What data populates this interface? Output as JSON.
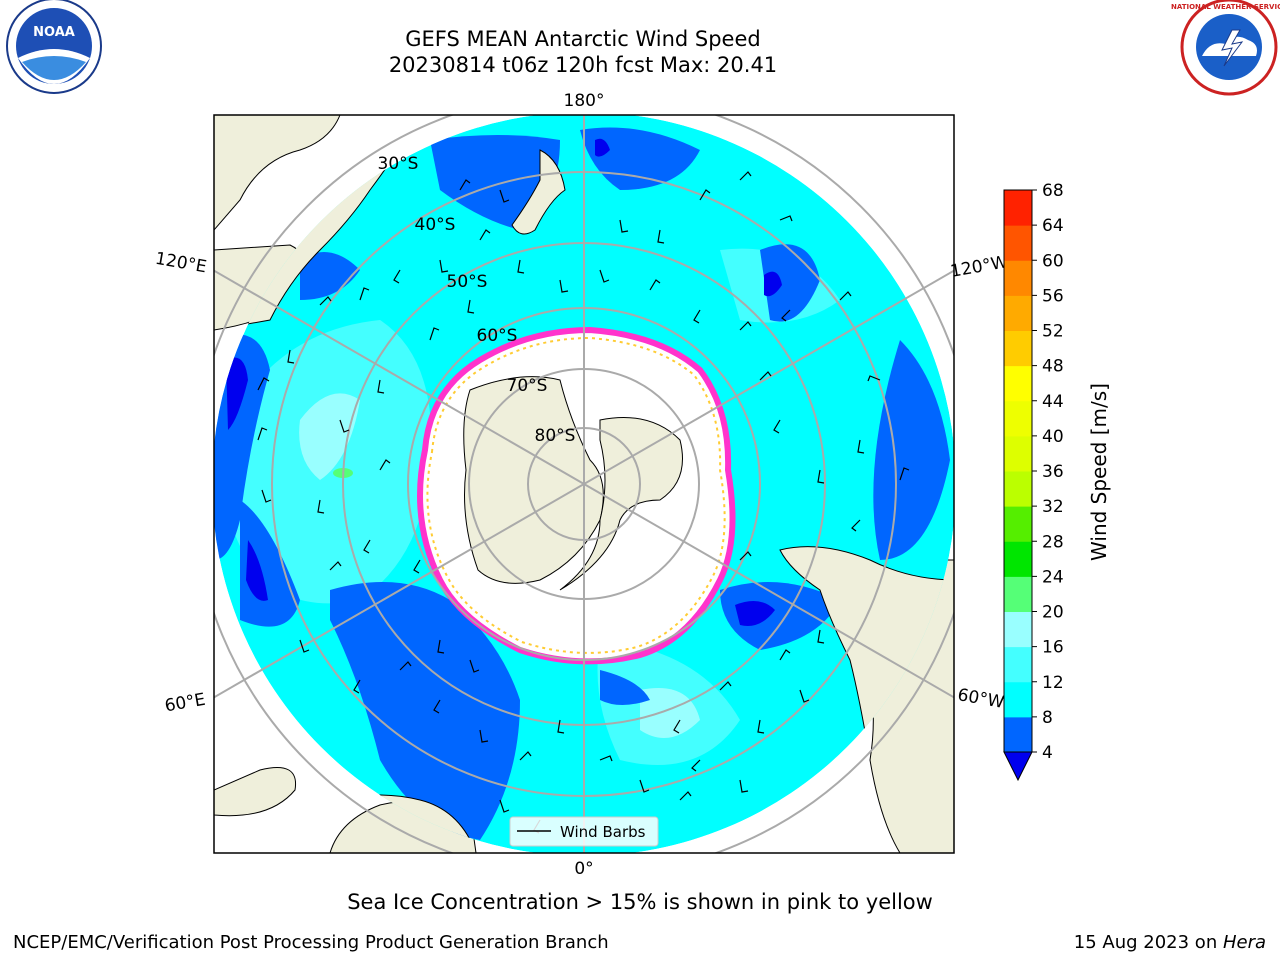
{
  "header": {
    "title": "GEFS MEAN Antarctic Wind Speed",
    "subtitle": "20230814 t06z 120h fcst   Max: 20.41"
  },
  "logos": {
    "left": "noaa-logo",
    "right": "national-weather-service-logo",
    "left_text": "NOAA",
    "right_text": "NATIONAL WEATHER SERVICE"
  },
  "map": {
    "longitude_labels": [
      "180°",
      "120°E",
      "120°W",
      "60°E",
      "60°W",
      "0°"
    ],
    "latitude_labels": [
      "30°S",
      "40°S",
      "50°S",
      "60°S",
      "70°S",
      "80°S"
    ],
    "legend_label": "Wind Barbs"
  },
  "colorbar": {
    "label": "Wind Speed [m/s]",
    "ticks": [
      "4",
      "8",
      "12",
      "16",
      "20",
      "24",
      "28",
      "32",
      "36",
      "40",
      "44",
      "48",
      "52",
      "56",
      "60",
      "64",
      "68"
    ],
    "colors": [
      "#0066ff",
      "#00ffff",
      "#44ffff",
      "#99ffff",
      "#55ff77",
      "#00e600",
      "#55ee00",
      "#bbff00",
      "#ddff00",
      "#eeff00",
      "#ffff00",
      "#ffcc00",
      "#ffaa00",
      "#ff8800",
      "#ff5500",
      "#ff2200",
      "#ff0000"
    ],
    "under_color": "#0000ee"
  },
  "caption": "Sea Ice Concentration > 15% is shown in pink to yellow",
  "footer": {
    "left": "NCEP/EMC/Verification Post Processing Product Generation Branch",
    "right_prefix": "15 Aug 2023 on ",
    "right_machine": "Hera"
  }
}
